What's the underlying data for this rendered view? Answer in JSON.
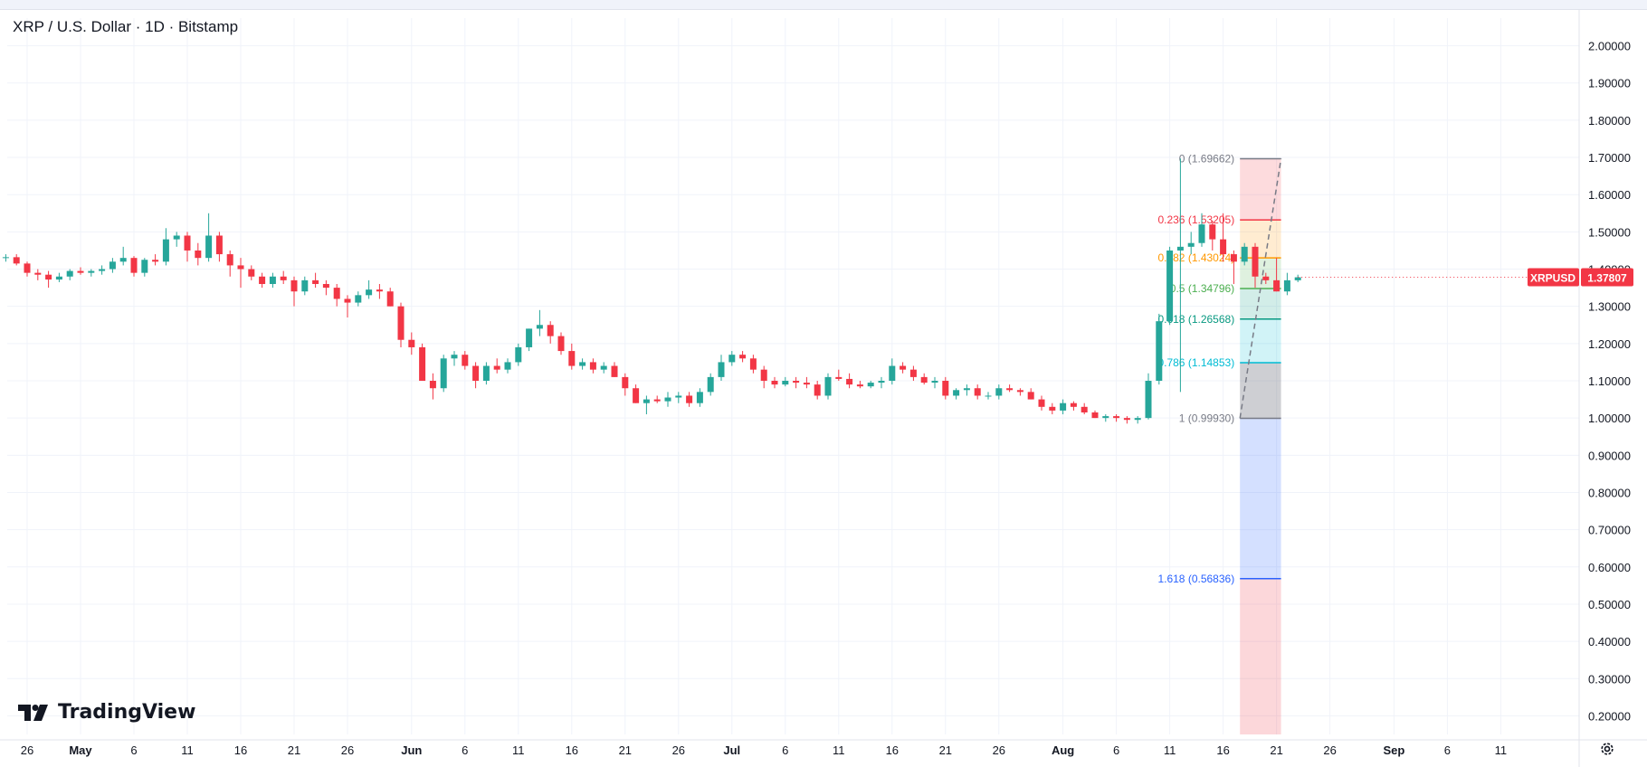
{
  "header": {
    "title": "XRP / U.S. Dollar · 1D · Bitstamp"
  },
  "brand": {
    "logo_text": "TradingView",
    "logo_icon": "tradingview-logo-icon"
  },
  "settings_icon": "gear-icon",
  "colors": {
    "up": "#26a69a",
    "down": "#f23645",
    "grid": "#f0f3fa",
    "axis_text": "#131722",
    "price_tag": "#f23645"
  },
  "chart_data": {
    "type": "candlestick",
    "symbol": "XRPUSD",
    "last_price": "1.37807",
    "ylim": [
      0.15,
      2.05
    ],
    "y_ticks": [
      "0.20000",
      "0.30000",
      "0.40000",
      "0.50000",
      "0.60000",
      "0.70000",
      "0.80000",
      "0.90000",
      "1.00000",
      "1.10000",
      "1.20000",
      "1.30000",
      "1.40000",
      "1.50000",
      "1.60000",
      "1.70000",
      "1.80000",
      "1.90000",
      "2.00000"
    ],
    "x_ticks": [
      {
        "label": "26",
        "day": -5,
        "bold": false
      },
      {
        "label": "May",
        "day": 0,
        "bold": true
      },
      {
        "label": "6",
        "day": 5,
        "bold": false
      },
      {
        "label": "11",
        "day": 10,
        "bold": false
      },
      {
        "label": "16",
        "day": 15,
        "bold": false
      },
      {
        "label": "21",
        "day": 20,
        "bold": false
      },
      {
        "label": "26",
        "day": 25,
        "bold": false
      },
      {
        "label": "Jun",
        "day": 31,
        "bold": true
      },
      {
        "label": "6",
        "day": 36,
        "bold": false
      },
      {
        "label": "11",
        "day": 41,
        "bold": false
      },
      {
        "label": "16",
        "day": 46,
        "bold": false
      },
      {
        "label": "21",
        "day": 51,
        "bold": false
      },
      {
        "label": "26",
        "day": 56,
        "bold": false
      },
      {
        "label": "Jul",
        "day": 61,
        "bold": true
      },
      {
        "label": "6",
        "day": 66,
        "bold": false
      },
      {
        "label": "11",
        "day": 71,
        "bold": false
      },
      {
        "label": "16",
        "day": 76,
        "bold": false
      },
      {
        "label": "21",
        "day": 81,
        "bold": false
      },
      {
        "label": "26",
        "day": 86,
        "bold": false
      },
      {
        "label": "Aug",
        "day": 92,
        "bold": true
      },
      {
        "label": "6",
        "day": 97,
        "bold": false
      },
      {
        "label": "11",
        "day": 102,
        "bold": false
      },
      {
        "label": "16",
        "day": 107,
        "bold": false
      },
      {
        "label": "21",
        "day": 112,
        "bold": false
      },
      {
        "label": "26",
        "day": 117,
        "bold": false
      },
      {
        "label": "Sep",
        "day": 123,
        "bold": true
      },
      {
        "label": "6",
        "day": 128,
        "bold": false
      },
      {
        "label": "11",
        "day": 133,
        "bold": false
      }
    ],
    "candles": [
      [
        1.445,
        1.45,
        1.43,
        1.435
      ],
      [
        1.435,
        1.44,
        1.425,
        1.43
      ],
      [
        1.43,
        1.44,
        1.42,
        1.432
      ],
      [
        1.432,
        1.44,
        1.41,
        1.415
      ],
      [
        1.415,
        1.42,
        1.38,
        1.39
      ],
      [
        1.39,
        1.4,
        1.37,
        1.385
      ],
      [
        1.385,
        1.395,
        1.35,
        1.372
      ],
      [
        1.372,
        1.39,
        1.365,
        1.38
      ],
      [
        1.38,
        1.4,
        1.37,
        1.395
      ],
      [
        1.395,
        1.405,
        1.385,
        1.39
      ],
      [
        1.39,
        1.4,
        1.38,
        1.395
      ],
      [
        1.395,
        1.41,
        1.385,
        1.4
      ],
      [
        1.4,
        1.43,
        1.39,
        1.42
      ],
      [
        1.42,
        1.46,
        1.41,
        1.43
      ],
      [
        1.43,
        1.435,
        1.38,
        1.39
      ],
      [
        1.39,
        1.43,
        1.38,
        1.425
      ],
      [
        1.425,
        1.44,
        1.41,
        1.42
      ],
      [
        1.42,
        1.51,
        1.41,
        1.48
      ],
      [
        1.48,
        1.5,
        1.46,
        1.49
      ],
      [
        1.49,
        1.5,
        1.42,
        1.45
      ],
      [
        1.45,
        1.47,
        1.41,
        1.43
      ],
      [
        1.43,
        1.55,
        1.42,
        1.49
      ],
      [
        1.49,
        1.5,
        1.42,
        1.44
      ],
      [
        1.44,
        1.45,
        1.38,
        1.41
      ],
      [
        1.41,
        1.43,
        1.35,
        1.4
      ],
      [
        1.4,
        1.41,
        1.37,
        1.38
      ],
      [
        1.38,
        1.39,
        1.35,
        1.36
      ],
      [
        1.36,
        1.39,
        1.35,
        1.38
      ],
      [
        1.38,
        1.395,
        1.36,
        1.37
      ],
      [
        1.37,
        1.38,
        1.3,
        1.34
      ],
      [
        1.34,
        1.38,
        1.33,
        1.37
      ],
      [
        1.37,
        1.39,
        1.35,
        1.36
      ],
      [
        1.36,
        1.37,
        1.33,
        1.35
      ],
      [
        1.35,
        1.36,
        1.3,
        1.32
      ],
      [
        1.32,
        1.33,
        1.27,
        1.31
      ],
      [
        1.31,
        1.34,
        1.3,
        1.33
      ],
      [
        1.33,
        1.37,
        1.32,
        1.345
      ],
      [
        1.345,
        1.36,
        1.32,
        1.34
      ],
      [
        1.34,
        1.35,
        1.3,
        1.3
      ],
      [
        1.3,
        1.31,
        1.19,
        1.21
      ],
      [
        1.21,
        1.23,
        1.17,
        1.19
      ],
      [
        1.19,
        1.2,
        1.1,
        1.1
      ],
      [
        1.1,
        1.12,
        1.05,
        1.08
      ],
      [
        1.08,
        1.17,
        1.07,
        1.16
      ],
      [
        1.16,
        1.18,
        1.14,
        1.17
      ],
      [
        1.17,
        1.18,
        1.13,
        1.14
      ],
      [
        1.14,
        1.15,
        1.08,
        1.1
      ],
      [
        1.1,
        1.15,
        1.09,
        1.14
      ],
      [
        1.14,
        1.16,
        1.12,
        1.13
      ],
      [
        1.13,
        1.16,
        1.12,
        1.15
      ],
      [
        1.15,
        1.2,
        1.14,
        1.19
      ],
      [
        1.19,
        1.24,
        1.18,
        1.24
      ],
      [
        1.24,
        1.29,
        1.22,
        1.25
      ],
      [
        1.25,
        1.26,
        1.2,
        1.22
      ],
      [
        1.22,
        1.23,
        1.17,
        1.18
      ],
      [
        1.18,
        1.2,
        1.13,
        1.14
      ],
      [
        1.14,
        1.16,
        1.13,
        1.15
      ],
      [
        1.15,
        1.16,
        1.12,
        1.13
      ],
      [
        1.13,
        1.15,
        1.12,
        1.14
      ],
      [
        1.14,
        1.15,
        1.11,
        1.11
      ],
      [
        1.11,
        1.12,
        1.06,
        1.08
      ],
      [
        1.08,
        1.09,
        1.04,
        1.04
      ],
      [
        1.04,
        1.06,
        1.01,
        1.05
      ],
      [
        1.05,
        1.06,
        1.04,
        1.045
      ],
      [
        1.045,
        1.07,
        1.03,
        1.055
      ],
      [
        1.055,
        1.07,
        1.04,
        1.06
      ],
      [
        1.06,
        1.07,
        1.03,
        1.04
      ],
      [
        1.04,
        1.08,
        1.03,
        1.07
      ],
      [
        1.07,
        1.12,
        1.06,
        1.11
      ],
      [
        1.11,
        1.17,
        1.1,
        1.15
      ],
      [
        1.15,
        1.18,
        1.14,
        1.17
      ],
      [
        1.17,
        1.18,
        1.15,
        1.16
      ],
      [
        1.16,
        1.17,
        1.12,
        1.13
      ],
      [
        1.13,
        1.14,
        1.08,
        1.1
      ],
      [
        1.1,
        1.11,
        1.08,
        1.09
      ],
      [
        1.09,
        1.11,
        1.085,
        1.1
      ],
      [
        1.1,
        1.11,
        1.08,
        1.095
      ],
      [
        1.095,
        1.11,
        1.08,
        1.09
      ],
      [
        1.09,
        1.1,
        1.05,
        1.06
      ],
      [
        1.06,
        1.12,
        1.05,
        1.11
      ],
      [
        1.11,
        1.13,
        1.1,
        1.105
      ],
      [
        1.105,
        1.12,
        1.08,
        1.09
      ],
      [
        1.09,
        1.1,
        1.08,
        1.085
      ],
      [
        1.085,
        1.1,
        1.08,
        1.095
      ],
      [
        1.095,
        1.11,
        1.08,
        1.1
      ],
      [
        1.1,
        1.16,
        1.09,
        1.14
      ],
      [
        1.14,
        1.15,
        1.12,
        1.13
      ],
      [
        1.13,
        1.14,
        1.1,
        1.11
      ],
      [
        1.11,
        1.12,
        1.09,
        1.095
      ],
      [
        1.095,
        1.11,
        1.08,
        1.1
      ],
      [
        1.1,
        1.11,
        1.05,
        1.06
      ],
      [
        1.06,
        1.08,
        1.05,
        1.075
      ],
      [
        1.075,
        1.09,
        1.06,
        1.08
      ],
      [
        1.08,
        1.09,
        1.05,
        1.06
      ],
      [
        1.06,
        1.07,
        1.05,
        1.06
      ],
      [
        1.06,
        1.09,
        1.05,
        1.08
      ],
      [
        1.08,
        1.09,
        1.07,
        1.075
      ],
      [
        1.075,
        1.08,
        1.06,
        1.07
      ],
      [
        1.07,
        1.08,
        1.05,
        1.05
      ],
      [
        1.05,
        1.06,
        1.02,
        1.03
      ],
      [
        1.03,
        1.04,
        1.01,
        1.02
      ],
      [
        1.02,
        1.05,
        1.01,
        1.04
      ],
      [
        1.04,
        1.045,
        1.02,
        1.03
      ],
      [
        1.03,
        1.04,
        1.01,
        1.015
      ],
      [
        1.015,
        1.02,
        1.0,
        1.0
      ],
      [
        1.0,
        1.01,
        0.99,
        1.005
      ],
      [
        1.005,
        1.01,
        0.99,
        1.0
      ],
      [
        1.0,
        1.005,
        0.985,
        0.995
      ],
      [
        0.995,
        1.005,
        0.985,
        1.0
      ],
      [
        1.0,
        1.12,
        0.996,
        1.1
      ],
      [
        1.1,
        1.28,
        1.09,
        1.26
      ],
      [
        1.26,
        1.46,
        1.25,
        1.45
      ],
      [
        1.45,
        1.697,
        1.07,
        1.46
      ],
      [
        1.46,
        1.5,
        1.44,
        1.47
      ],
      [
        1.47,
        1.55,
        1.46,
        1.52
      ],
      [
        1.52,
        1.53,
        1.45,
        1.48
      ],
      [
        1.48,
        1.55,
        1.42,
        1.44
      ],
      [
        1.44,
        1.45,
        1.36,
        1.42
      ],
      [
        1.42,
        1.47,
        1.41,
        1.46
      ],
      [
        1.46,
        1.47,
        1.35,
        1.38
      ],
      [
        1.38,
        1.39,
        1.36,
        1.37
      ],
      [
        1.37,
        1.43,
        1.34,
        1.34
      ],
      [
        1.34,
        1.39,
        1.33,
        1.37
      ],
      [
        1.37,
        1.385,
        1.365,
        1.378
      ]
    ],
    "fib": {
      "levels": [
        {
          "ratio": "0",
          "price": 1.69662,
          "label": "0 (1.69662)",
          "color": "#787b86"
        },
        {
          "ratio": "0.236",
          "price": 1.53205,
          "label": "0.236 (1.53205)",
          "color": "#f23645"
        },
        {
          "ratio": "0.382",
          "price": 1.43024,
          "label": "0.382 (1.43024)",
          "color": "#ff9800"
        },
        {
          "ratio": "0.5",
          "price": 1.34796,
          "label": "0.5 (1.34796)",
          "color": "#4caf50"
        },
        {
          "ratio": "0.618",
          "price": 1.26568,
          "label": "0.618 (1.26568)",
          "color": "#089981"
        },
        {
          "ratio": "0.786",
          "price": 1.14853,
          "label": "0.786 (1.14853)",
          "color": "#00bcd4"
        },
        {
          "ratio": "1",
          "price": 0.9993,
          "label": "1 (0.99930)",
          "color": "#787b86"
        },
        {
          "ratio": "1.618",
          "price": 0.56836,
          "label": "1.618 (0.56836)",
          "color": "#2962ff"
        }
      ],
      "start_day": 109,
      "end_day": 112
    }
  }
}
